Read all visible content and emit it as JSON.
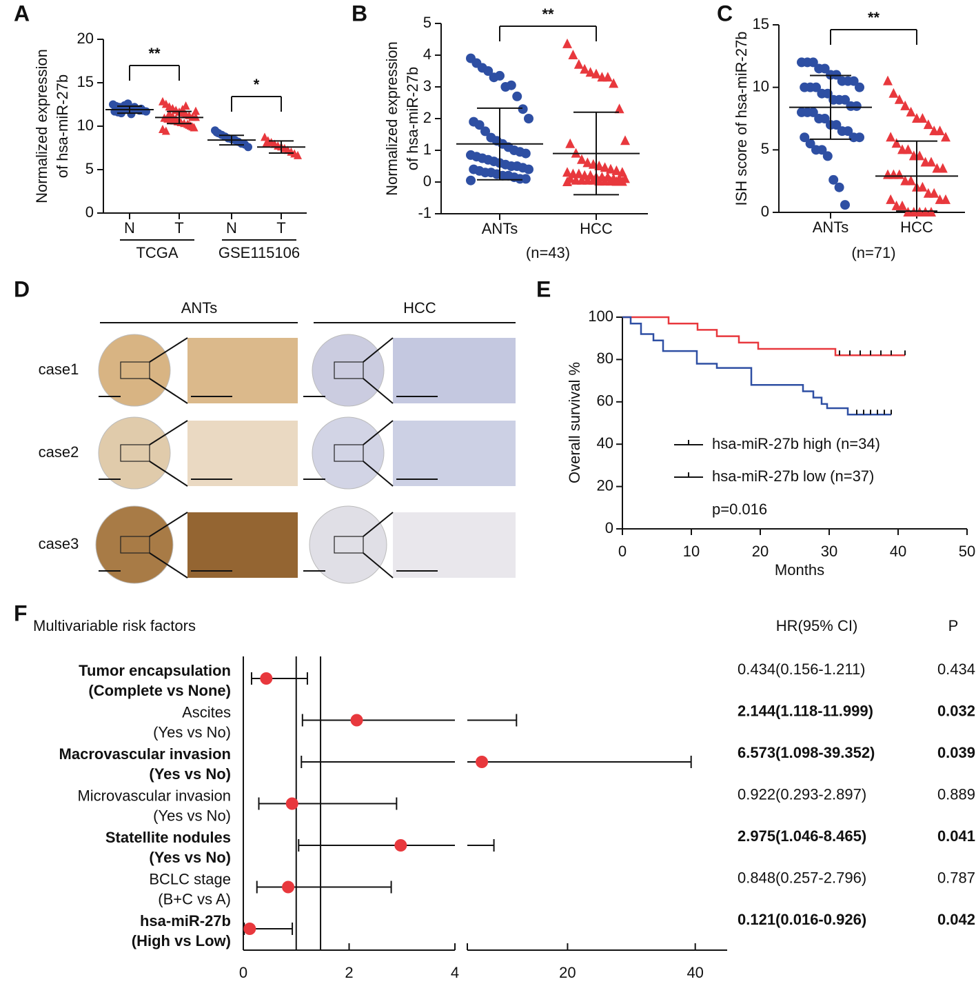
{
  "chart_data": [
    {
      "type": "dot",
      "panel_label": "A",
      "ylabel": [
        "Normalized expression",
        "of  hsa-miR-27b"
      ],
      "categories": [
        "N",
        "T",
        "N",
        "T"
      ],
      "group_labels": [
        "TCGA",
        "GSE115106"
      ],
      "significance": [
        "**",
        "*"
      ],
      "colors": [
        "#2e4fa3",
        "#e8383d",
        "#2e4fa3",
        "#e8383d"
      ],
      "markers": [
        "circle",
        "triangle",
        "circle",
        "triangle"
      ],
      "points": [
        [
          12.5,
          12.3,
          12.2,
          12.1,
          12.0,
          12.0,
          11.9,
          11.9,
          11.8,
          11.8,
          11.7,
          11.7,
          11.6,
          11.5,
          12.4,
          12.6,
          11.4,
          12.2,
          11.9,
          12.0
        ],
        [
          12.8,
          12.5,
          12.2,
          12.0,
          11.8,
          11.6,
          11.5,
          11.3,
          11.2,
          11.0,
          11.0,
          10.9,
          10.8,
          10.7,
          10.6,
          10.5,
          10.4,
          10.3,
          10.2,
          10.0,
          9.8,
          9.6,
          9.4,
          11.4,
          11.1,
          10.8,
          10.5,
          11.9,
          12.3,
          10.1,
          9.9,
          11.7
        ],
        [
          9.5,
          9.2,
          9.0,
          8.8,
          8.6,
          8.5,
          8.4,
          8.2,
          8.0,
          7.9,
          7.6,
          9.3
        ],
        [
          8.7,
          8.3,
          8.1,
          7.9,
          7.7,
          7.6,
          7.4,
          7.2,
          7.0,
          6.8,
          6.6,
          8.0
        ]
      ],
      "mean": [
        11.9,
        11.0,
        8.4,
        7.6
      ],
      "sd": [
        0.4,
        0.7,
        0.55,
        0.7
      ],
      "ylim": [
        0,
        20
      ],
      "yticks": [
        0,
        5,
        10,
        15,
        20
      ]
    },
    {
      "type": "dot",
      "panel_label": "B",
      "ylabel": [
        "Normalized expression",
        "of  hsa-miR-27b"
      ],
      "categories": [
        "ANTs",
        "HCC"
      ],
      "note": "(n=43)",
      "significance": "**",
      "colors": [
        "#2e4fa3",
        "#e8383d"
      ],
      "markers": [
        "circle",
        "triangle"
      ],
      "points": [
        [
          3.9,
          3.75,
          3.6,
          3.5,
          3.3,
          3.35,
          3.0,
          3.05,
          2.7,
          2.3,
          2.0,
          1.9,
          1.8,
          1.6,
          1.4,
          1.3,
          1.2,
          1.1,
          1.0,
          0.95,
          0.9,
          0.85,
          0.8,
          0.75,
          0.7,
          0.65,
          0.6,
          0.55,
          0.5,
          0.5,
          0.45,
          0.4,
          0.4,
          0.35,
          0.3,
          0.3,
          0.25,
          0.2,
          0.2,
          0.15,
          0.1,
          0.1,
          0.05
        ],
        [
          4.35,
          4.0,
          3.7,
          3.55,
          3.45,
          3.4,
          3.3,
          3.3,
          3.1,
          2.3,
          1.3,
          1.2,
          0.9,
          0.7,
          0.6,
          0.55,
          0.5,
          0.45,
          0.4,
          0.35,
          0.3,
          0.3,
          0.25,
          0.25,
          0.2,
          0.2,
          0.15,
          0.15,
          0.15,
          0.1,
          0.1,
          0.1,
          0.1,
          0.05,
          0.05,
          0.05,
          0.05,
          0.02,
          0.02,
          0.02,
          0.01,
          0.01,
          0.0
        ]
      ],
      "mean": [
        1.2,
        0.9
      ],
      "sd": [
        1.13,
        1.3
      ],
      "ylim": [
        -1,
        5
      ],
      "yticks": [
        -1,
        0,
        1,
        2,
        3,
        4,
        5
      ]
    },
    {
      "type": "dot",
      "panel_label": "C",
      "ylabel": [
        "ISH score of hsa-miR-27b"
      ],
      "categories": [
        "ANTs",
        "HCC"
      ],
      "note": "(n=71)",
      "significance": "**",
      "colors": [
        "#2e4fa3",
        "#e8383d"
      ],
      "markers": [
        "circle",
        "triangle"
      ],
      "points": [
        [
          12,
          12,
          12,
          11.5,
          11.5,
          11,
          11,
          10.5,
          10.5,
          10.5,
          10,
          10,
          10,
          10,
          9.5,
          9.5,
          9,
          9,
          9,
          8.5,
          8.5,
          8,
          8,
          8,
          7.5,
          7.5,
          7,
          7,
          6.5,
          6.5,
          6,
          6,
          6,
          5.5,
          5,
          5,
          4.5,
          2.6,
          2,
          0.6
        ],
        [
          10.5,
          9.5,
          9,
          8.5,
          8,
          7.5,
          7.5,
          7,
          6.5,
          6.5,
          6,
          6,
          5.5,
          5,
          5,
          4.5,
          4.5,
          4,
          4,
          3.5,
          3.5,
          3,
          3,
          3,
          2.5,
          2.5,
          2,
          2,
          1.5,
          1.5,
          1,
          1,
          1,
          0.5,
          0.5,
          0,
          0,
          0,
          0,
          0
        ]
      ],
      "mean": [
        8.4,
        2.9
      ],
      "sd": [
        2.55,
        2.8
      ],
      "ylim": [
        0,
        15
      ],
      "yticks": [
        0,
        5,
        10,
        15
      ]
    },
    {
      "type": "line",
      "panel_label": "E",
      "step": true,
      "xlabel": "Months",
      "ylabel": "Overall survival %",
      "annotation": "p=0.016",
      "xlim": [
        0,
        50
      ],
      "xticks": [
        0,
        10,
        20,
        30,
        40,
        50
      ],
      "ylim": [
        0,
        100
      ],
      "yticks": [
        0,
        20,
        40,
        60,
        80,
        100
      ],
      "series": [
        {
          "name": "hsa-miR-27b high (n=34)",
          "color": "#e8383d",
          "x": [
            0,
            6.7,
            10.9,
            13.7,
            16.9,
            19.7,
            30.9,
            41
          ],
          "values": [
            100,
            97,
            94,
            91,
            88,
            85,
            82,
            82
          ],
          "censor_x": [
            31.5,
            33,
            34.5,
            36,
            37.5,
            39,
            41
          ]
        },
        {
          "name": "hsa-miR-27b low (n=37)",
          "color": "#2e4fa3",
          "x": [
            0,
            1.2,
            2.7,
            4.5,
            5.9,
            10.8,
            13.7,
            18.7,
            26.2,
            27.7,
            28.9,
            29.7,
            32.7,
            39
          ],
          "values": [
            100,
            97,
            92,
            89,
            84,
            78,
            76,
            68,
            65,
            62,
            59,
            57,
            54,
            54
          ],
          "censor_x": [
            34,
            35,
            36,
            37,
            38,
            39
          ]
        }
      ]
    },
    {
      "type": "forest",
      "panel_label": "F",
      "title": "Multivariable risk factors",
      "columns": [
        "HR(95% CI)",
        "P"
      ],
      "color": "#e8383d",
      "reference_lines": [
        1,
        1.46
      ],
      "xlim": [
        0,
        45
      ],
      "xbreak": [
        4,
        4.3
      ],
      "xticks": [
        0,
        2,
        4,
        20,
        40
      ],
      "rows": [
        {
          "label": [
            "Tumor encapsulation",
            "(Complete vs None)"
          ],
          "label_bold": true,
          "value_bold": false,
          "hr": 0.434,
          "lower": 0.156,
          "upper": 1.211,
          "ci_label": "0.434(0.156-1.211)",
          "p": 0.434
        },
        {
          "label": [
            "Ascites",
            "(Yes vs No)"
          ],
          "label_bold": false,
          "value_bold": true,
          "hr": 2.144,
          "lower": 1.118,
          "upper": 11.999,
          "ci_label": "2.144(1.118-11.999)",
          "p": 0.032
        },
        {
          "label": [
            "Macrovascular invasion",
            "(Yes vs No)"
          ],
          "label_bold": true,
          "value_bold": true,
          "hr": 6.573,
          "lower": 1.098,
          "upper": 39.352,
          "ci_label": "6.573(1.098-39.352)",
          "p": 0.039
        },
        {
          "label": [
            "Microvascular invasion",
            "(Yes vs No)"
          ],
          "label_bold": false,
          "value_bold": false,
          "hr": 0.922,
          "lower": 0.293,
          "upper": 2.897,
          "ci_label": "0.922(0.293-2.897)",
          "p": 0.889
        },
        {
          "label": [
            "Statellite nodules",
            "(Yes vs No)"
          ],
          "label_bold": true,
          "value_bold": true,
          "hr": 2.975,
          "lower": 1.046,
          "upper": 8.465,
          "ci_label": "2.975(1.046-8.465)",
          "p": 0.041
        },
        {
          "label": [
            "BCLC stage",
            "(B+C vs A)"
          ],
          "label_bold": false,
          "value_bold": false,
          "hr": 0.848,
          "lower": 0.257,
          "upper": 2.796,
          "ci_label": "0.848(0.257-2.796)",
          "p": 0.787
        },
        {
          "label": [
            "hsa-miR-27b",
            "(High vs Low)"
          ],
          "label_bold": true,
          "value_bold": true,
          "hr": 0.121,
          "lower": 0.016,
          "upper": 0.926,
          "ci_label": "0.121(0.016-0.926)",
          "p": 0.042
        }
      ]
    }
  ],
  "tissue_panel": {
    "panel_label": "D",
    "groups": [
      "ANTs",
      "HCC"
    ],
    "cases": [
      "case1",
      "case2",
      "case3"
    ]
  }
}
